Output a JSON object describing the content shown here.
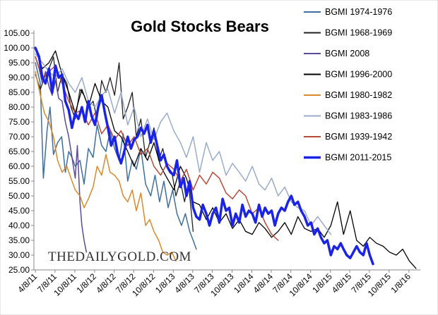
{
  "chart_data": {
    "type": "line",
    "title": "Gold Stocks Bears",
    "watermark": "THEDAILYGOLD.COM",
    "xlabel": "",
    "ylabel": "",
    "x_dates": [
      "2011-04-08",
      "2016-03-01"
    ],
    "xlim": [
      "2011-04-01",
      "2016-03-01"
    ],
    "ylim": [
      25,
      105
    ],
    "yticks": [
      "25.00",
      "30.00",
      "35.00",
      "40.00",
      "45.00",
      "50.00",
      "55.00",
      "60.00",
      "65.00",
      "70.00",
      "75.00",
      "80.00",
      "85.00",
      "90.00",
      "95.00",
      "100.00",
      "105.00"
    ],
    "xticks": [
      "4/8/11",
      "7/8/11",
      "10/8/11",
      "1/8/12",
      "4/8/12",
      "7/8/12",
      "10/8/12",
      "1/8/13",
      "4/8/13",
      "7/8/13",
      "10/8/13",
      "1/8/14",
      "4/8/14",
      "7/8/14",
      "10/8/14",
      "1/8/15",
      "4/8/15",
      "7/8/15",
      "10/8/15",
      "1/8/16"
    ],
    "grid": false,
    "legend_position": "right",
    "series": [
      {
        "name": "BGMI 1974-1976",
        "color": "#3e6f9e",
        "width": 1.5,
        "x": [
          "2011-04-08",
          "2011-05-01",
          "2011-05-15",
          "2011-06-01",
          "2011-06-15",
          "2011-07-01",
          "2011-07-20",
          "2011-08-08",
          "2011-08-25",
          "2011-09-10",
          "2011-09-25",
          "2011-10-10",
          "2011-11-01",
          "2011-11-20",
          "2011-12-10",
          "2012-01-01",
          "2012-01-20",
          "2012-02-10",
          "2012-03-01",
          "2012-03-20",
          "2012-04-10",
          "2012-05-01",
          "2012-05-20",
          "2012-06-10",
          "2012-07-01",
          "2012-07-20",
          "2012-08-10",
          "2012-09-01",
          "2012-09-25",
          "2012-10-15",
          "2012-11-05",
          "2012-11-25",
          "2012-12-15",
          "2013-01-05",
          "2013-01-25",
          "2013-02-15",
          "2013-03-05",
          "2013-03-25",
          "2013-04-10",
          "2013-04-25"
        ],
        "y": [
          95,
          88,
          56,
          72,
          80,
          64,
          68,
          70,
          58,
          65,
          63,
          60,
          62,
          54,
          66,
          63,
          74,
          67,
          65,
          72,
          66,
          62,
          71,
          55,
          62,
          59,
          66,
          54,
          50,
          57,
          48,
          55,
          46,
          52,
          44,
          40,
          44,
          38,
          35,
          32
        ]
      },
      {
        "name": "BGMI 1968-1969",
        "color": "#222222",
        "width": 1.3,
        "x": [
          "2011-04-08",
          "2011-05-01",
          "2011-05-20",
          "2011-06-10",
          "2011-07-01",
          "2011-07-20",
          "2011-08-10",
          "2011-09-01",
          "2011-09-20",
          "2011-10-10",
          "2011-11-01",
          "2011-11-20",
          "2011-12-10",
          "2012-01-01",
          "2012-01-20",
          "2012-02-10",
          "2012-03-01",
          "2012-03-20",
          "2012-04-10",
          "2012-05-01",
          "2012-05-20",
          "2012-06-10",
          "2012-07-01",
          "2012-07-20",
          "2012-08-10",
          "2012-09-01",
          "2012-09-20",
          "2012-10-10",
          "2012-11-01",
          "2012-11-20",
          "2012-12-10",
          "2013-01-01",
          "2013-01-20",
          "2013-02-10",
          "2013-03-01",
          "2013-03-20",
          "2013-04-10"
        ],
        "y": [
          91,
          86,
          90,
          93,
          97,
          85,
          91,
          88,
          80,
          76,
          86,
          84,
          80,
          82,
          76,
          89,
          85,
          90,
          84,
          95,
          76,
          80,
          85,
          70,
          76,
          63,
          68,
          73,
          62,
          66,
          60,
          58,
          50,
          55,
          48,
          54,
          38
        ]
      },
      {
        "name": "BGMI 2008",
        "color": "#5b4a9e",
        "width": 1.5,
        "x": [
          "2011-04-08",
          "2011-04-25",
          "2011-05-10",
          "2011-05-25",
          "2011-06-10",
          "2011-06-25",
          "2011-07-10",
          "2011-07-25",
          "2011-08-10",
          "2011-08-25",
          "2011-09-10",
          "2011-09-25",
          "2011-10-10",
          "2011-10-20",
          "2011-11-01",
          "2011-11-10",
          "2011-11-20",
          "2011-12-01"
        ],
        "y": [
          97,
          93,
          88,
          92,
          87,
          84,
          89,
          83,
          82,
          75,
          70,
          63,
          56,
          67,
          48,
          40,
          35,
          31
        ]
      },
      {
        "name": "BGMI 1996-2000",
        "color": "#000000",
        "width": 1.3,
        "x": [
          "2011-04-08",
          "2011-05-10",
          "2011-06-10",
          "2011-07-10",
          "2011-08-10",
          "2011-09-10",
          "2011-10-10",
          "2011-11-10",
          "2011-12-10",
          "2012-01-10",
          "2012-02-10",
          "2012-03-10",
          "2012-04-10",
          "2012-05-10",
          "2012-06-10",
          "2012-07-10",
          "2012-08-10",
          "2012-09-10",
          "2012-10-10",
          "2012-11-10",
          "2012-12-10",
          "2013-01-10",
          "2013-02-10",
          "2013-03-10",
          "2013-04-10",
          "2013-05-10",
          "2013-06-10",
          "2013-07-10",
          "2013-08-10",
          "2013-09-10",
          "2013-10-10",
          "2013-11-10",
          "2013-12-10",
          "2014-01-10",
          "2014-02-10",
          "2014-03-10",
          "2014-04-10",
          "2014-05-10",
          "2014-06-10",
          "2014-07-10",
          "2014-08-10",
          "2014-09-10",
          "2014-10-10",
          "2014-11-10",
          "2014-12-10",
          "2015-01-10",
          "2015-02-10",
          "2015-03-10",
          "2015-04-10",
          "2015-05-10",
          "2015-06-10",
          "2015-07-10",
          "2015-08-10",
          "2015-09-10",
          "2015-10-10",
          "2015-11-10",
          "2015-12-10",
          "2016-01-10",
          "2016-02-10"
        ],
        "y": [
          100,
          93,
          95,
          99,
          91,
          85,
          78,
          86,
          80,
          88,
          82,
          80,
          72,
          70,
          65,
          60,
          66,
          62,
          68,
          60,
          56,
          52,
          60,
          56,
          48,
          47,
          42,
          46,
          41,
          44,
          39,
          42,
          38,
          37,
          41,
          39,
          36,
          38,
          41,
          37,
          43,
          39,
          38,
          39,
          36,
          40,
          48,
          37,
          45,
          35,
          33,
          36,
          34,
          33,
          31,
          30,
          32,
          28,
          25.5
        ]
      },
      {
        "name": "BGMI 1980-1982",
        "color": "#d98a2b",
        "width": 1.5,
        "x": [
          "2011-04-08",
          "2011-05-01",
          "2011-05-20",
          "2011-06-10",
          "2011-07-01",
          "2011-07-20",
          "2011-08-10",
          "2011-09-01",
          "2011-09-20",
          "2011-10-10",
          "2011-11-01",
          "2011-11-20",
          "2011-12-10",
          "2012-01-01",
          "2012-01-20",
          "2012-02-10",
          "2012-03-01",
          "2012-03-20",
          "2012-04-10",
          "2012-05-01",
          "2012-05-20",
          "2012-06-10",
          "2012-07-01",
          "2012-07-20",
          "2012-08-10",
          "2012-09-01",
          "2012-09-20",
          "2012-10-10",
          "2012-11-01",
          "2012-11-20",
          "2012-12-10",
          "2013-01-01",
          "2013-01-20"
        ],
        "y": [
          92,
          84,
          78,
          75,
          70,
          62,
          58,
          60,
          56,
          52,
          50,
          46,
          49,
          53,
          60,
          57,
          64,
          58,
          57,
          55,
          50,
          48,
          52,
          45,
          51,
          40,
          42,
          38,
          35,
          31,
          30,
          31,
          28
        ]
      },
      {
        "name": "BGMI 1983-1986",
        "color": "#9aaccc",
        "width": 1.5,
        "x": [
          "2011-04-08",
          "2011-05-10",
          "2011-06-10",
          "2011-07-10",
          "2011-08-10",
          "2011-09-10",
          "2011-10-10",
          "2011-11-10",
          "2011-12-10",
          "2012-01-10",
          "2012-02-10",
          "2012-03-10",
          "2012-04-10",
          "2012-05-10",
          "2012-06-10",
          "2012-07-10",
          "2012-08-10",
          "2012-09-10",
          "2012-10-10",
          "2012-11-10",
          "2012-12-10",
          "2013-01-10",
          "2013-02-10",
          "2013-03-10",
          "2013-04-10",
          "2013-05-10",
          "2013-06-10",
          "2013-07-10",
          "2013-08-10",
          "2013-09-10",
          "2013-10-10",
          "2013-11-10",
          "2013-12-10",
          "2014-01-10",
          "2014-02-10",
          "2014-03-10",
          "2014-04-10",
          "2014-05-10",
          "2014-06-10",
          "2014-07-10",
          "2014-08-10",
          "2014-09-10",
          "2014-10-10",
          "2014-11-10",
          "2014-12-10",
          "2015-01-10"
        ],
        "y": [
          98,
          95,
          92,
          90,
          93,
          88,
          85,
          90,
          82,
          80,
          84,
          86,
          78,
          85,
          74,
          80,
          70,
          76,
          69,
          75,
          78,
          72,
          68,
          63,
          70,
          58,
          68,
          62,
          65,
          57,
          61,
          58,
          55,
          60,
          54,
          52,
          56,
          50,
          53,
          48,
          46,
          45,
          40,
          43,
          40,
          37
        ]
      },
      {
        "name": "BGMI 1939-1942",
        "color": "#b84a3a",
        "width": 1.5,
        "x": [
          "2011-04-08",
          "2011-05-10",
          "2011-06-10",
          "2011-07-10",
          "2011-08-10",
          "2011-09-10",
          "2011-10-10",
          "2011-11-10",
          "2011-12-10",
          "2012-01-10",
          "2012-02-10",
          "2012-03-10",
          "2012-04-10",
          "2012-05-10",
          "2012-06-10",
          "2012-07-10",
          "2012-08-10",
          "2012-09-10",
          "2012-10-10",
          "2012-11-10",
          "2012-12-10",
          "2013-01-10",
          "2013-02-10",
          "2013-03-10",
          "2013-04-10",
          "2013-05-10",
          "2013-06-10",
          "2013-07-10",
          "2013-08-10",
          "2013-09-10",
          "2013-10-10",
          "2013-11-10",
          "2013-12-10",
          "2014-01-10",
          "2014-02-10",
          "2014-03-10",
          "2014-04-10",
          "2014-05-10"
        ],
        "y": [
          97,
          90,
          92,
          94,
          88,
          82,
          78,
          79,
          74,
          78,
          71,
          74,
          69,
          72,
          67,
          70,
          64,
          66,
          60,
          57,
          61,
          59,
          55,
          59,
          52,
          57,
          54,
          58,
          56,
          51,
          49,
          52,
          50,
          44,
          46,
          41,
          37,
          35
        ]
      },
      {
        "name": "BGMI 2011-2015",
        "color": "#1a23e6",
        "width": 3.5,
        "x": [
          "2011-04-08",
          "2011-04-25",
          "2011-05-10",
          "2011-05-25",
          "2011-06-10",
          "2011-06-25",
          "2011-07-10",
          "2011-07-25",
          "2011-08-10",
          "2011-08-25",
          "2011-09-10",
          "2011-09-25",
          "2011-10-10",
          "2011-10-25",
          "2011-11-10",
          "2011-11-25",
          "2011-12-10",
          "2011-12-25",
          "2012-01-10",
          "2012-01-25",
          "2012-02-10",
          "2012-02-25",
          "2012-03-10",
          "2012-03-25",
          "2012-04-10",
          "2012-04-25",
          "2012-05-10",
          "2012-05-25",
          "2012-06-10",
          "2012-06-25",
          "2012-07-10",
          "2012-07-25",
          "2012-08-10",
          "2012-08-25",
          "2012-09-10",
          "2012-09-25",
          "2012-10-10",
          "2012-10-25",
          "2012-11-10",
          "2012-11-25",
          "2012-12-10",
          "2012-12-25",
          "2013-01-10",
          "2013-01-25",
          "2013-02-10",
          "2013-02-25",
          "2013-03-10",
          "2013-03-25",
          "2013-04-10",
          "2013-04-25",
          "2013-05-10",
          "2013-05-25",
          "2013-06-10",
          "2013-06-25",
          "2013-07-10",
          "2013-07-25",
          "2013-08-10",
          "2013-08-25",
          "2013-09-10",
          "2013-09-25",
          "2013-10-10",
          "2013-10-25",
          "2013-11-10",
          "2013-11-25",
          "2013-12-10",
          "2013-12-25",
          "2014-01-10",
          "2014-01-25",
          "2014-02-10",
          "2014-02-25",
          "2014-03-10",
          "2014-03-25",
          "2014-04-10",
          "2014-04-25",
          "2014-05-10",
          "2014-05-25",
          "2014-06-10",
          "2014-06-25",
          "2014-07-10",
          "2014-07-25",
          "2014-08-10",
          "2014-08-25",
          "2014-09-10",
          "2014-09-25",
          "2014-10-10",
          "2014-10-25",
          "2014-11-10",
          "2014-11-25",
          "2014-12-10",
          "2014-12-25",
          "2015-01-10",
          "2015-01-25",
          "2015-02-10",
          "2015-02-25",
          "2015-03-10",
          "2015-03-25",
          "2015-04-10",
          "2015-04-25",
          "2015-05-10",
          "2015-05-25",
          "2015-06-10",
          "2015-06-25",
          "2015-07-10",
          "2015-07-25"
        ],
        "y": [
          100,
          97,
          90,
          88,
          93,
          85,
          94,
          90,
          91,
          82,
          79,
          73,
          78,
          76,
          80,
          75,
          82,
          77,
          74,
          80,
          84,
          78,
          73,
          67,
          70,
          64,
          61,
          65,
          70,
          66,
          69,
          70,
          73,
          71,
          74,
          68,
          72,
          67,
          62,
          64,
          60,
          58,
          57,
          62,
          53,
          56,
          50,
          55,
          46,
          43,
          42,
          47,
          44,
          40,
          44,
          46,
          41,
          49,
          45,
          46,
          40,
          44,
          41,
          47,
          43,
          45,
          44,
          41,
          47,
          43,
          46,
          44,
          45,
          40,
          44,
          46,
          45,
          48,
          50,
          47,
          48,
          45,
          43,
          40,
          41,
          37,
          39,
          36,
          34,
          35,
          30,
          33,
          32,
          34,
          32,
          30,
          29,
          31,
          33,
          31,
          30,
          34,
          30,
          27
        ]
      }
    ]
  }
}
